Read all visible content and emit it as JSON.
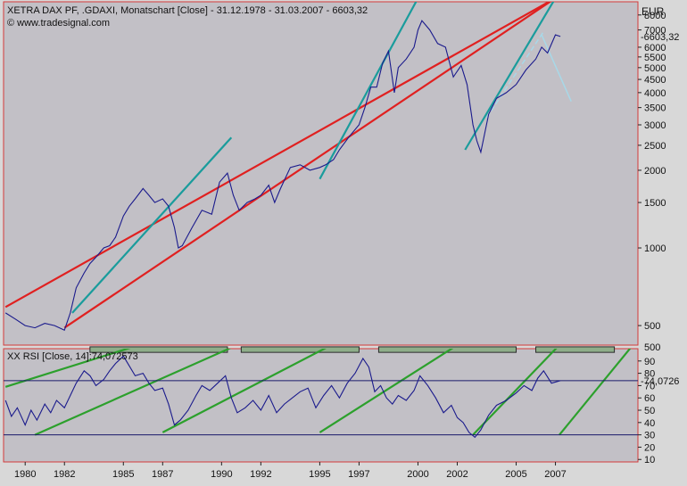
{
  "chart_data": [
    {
      "type": "line",
      "title": "XETRA DAX PF, .GDAXI, Monatschart [Close] - 31.12.1978 - 31.03.2007 - 6603,32",
      "source": "© www.tradesignal.com",
      "unit": "EUR",
      "scale": "log",
      "last_value_label": "6603,32",
      "y_ticks": [
        500,
        1000,
        1500,
        2000,
        2500,
        3000,
        3500,
        4000,
        4500,
        5000,
        5500,
        6000,
        7000,
        8000
      ],
      "y_tick_labels": [
        "500",
        "1000",
        "1500",
        "2000",
        "2500",
        "3000",
        "3500",
        "4000",
        "4500",
        "5000",
        "5500",
        "6000",
        "7000",
        "8000"
      ],
      "ylim_label_partial": "500",
      "ylim": [
        420,
        9000
      ],
      "xlim": [
        1978.9,
        2011.2
      ],
      "grid": false,
      "series": [
        {
          "color": "#1a1a8c",
          "x": [
            1979.0,
            1979.5,
            1980.0,
            1980.5,
            1981.0,
            1981.5,
            1982.0,
            1982.3,
            1982.6,
            1983.0,
            1983.3,
            1983.6,
            1984.0,
            1984.3,
            1984.6,
            1985.0,
            1985.3,
            1985.6,
            1986.0,
            1986.3,
            1986.6,
            1987.0,
            1987.3,
            1987.6,
            1987.8,
            1988.0,
            1988.5,
            1989.0,
            1989.5,
            1989.9,
            1990.3,
            1990.6,
            1990.9,
            1991.3,
            1991.7,
            1992.0,
            1992.4,
            1992.7,
            1993.0,
            1993.5,
            1994.0,
            1994.5,
            1995.0,
            1995.3,
            1995.7,
            1996.0,
            1996.5,
            1997.0,
            1997.3,
            1997.6,
            1997.9,
            1998.2,
            1998.5,
            1998.8,
            1999.0,
            1999.4,
            1999.8,
            2000.0,
            2000.2,
            2000.6,
            2001.0,
            2001.4,
            2001.8,
            2002.2,
            2002.5,
            2002.8,
            2003.0,
            2003.2,
            2003.6,
            2004.0,
            2004.5,
            2005.0,
            2005.5,
            2006.0,
            2006.3,
            2006.6,
            2007.0,
            2007.25
          ],
          "values": [
            560,
            530,
            500,
            490,
            510,
            500,
            480,
            560,
            700,
            800,
            870,
            920,
            1000,
            1020,
            1100,
            1330,
            1450,
            1550,
            1700,
            1600,
            1500,
            1550,
            1450,
            1200,
            1000,
            1020,
            1200,
            1400,
            1350,
            1800,
            1950,
            1600,
            1400,
            1500,
            1550,
            1600,
            1750,
            1500,
            1700,
            2050,
            2100,
            2000,
            2050,
            2100,
            2200,
            2400,
            2700,
            3000,
            3500,
            4200,
            4200,
            5200,
            5800,
            4000,
            5000,
            5400,
            6000,
            7000,
            7600,
            7000,
            6200,
            6000,
            4600,
            5100,
            4300,
            3000,
            2600,
            2350,
            3300,
            3800,
            4000,
            4300,
            4900,
            5400,
            6000,
            5700,
            6700,
            6603
          ]
        }
      ],
      "trendlines": [
        {
          "color": "#e02020",
          "x": [
            1979.0,
            2007.0
          ],
          "values": [
            590,
            9300
          ]
        },
        {
          "color": "#e02020",
          "x": [
            1982.0,
            2007.0
          ],
          "values": [
            490,
            9300
          ]
        },
        {
          "color": "#1a9c9c",
          "x": [
            1982.4,
            1990.5
          ],
          "values": [
            560,
            2680
          ]
        },
        {
          "color": "#1a9c9c",
          "x": [
            1995.0,
            2000.0
          ],
          "values": [
            1850,
            9300
          ]
        },
        {
          "color": "#1a9c9c",
          "x": [
            2002.4,
            2007.0
          ],
          "values": [
            2400,
            9300
          ]
        },
        {
          "color": "#a8d8e8",
          "x": [
            2006.3,
            2007.8
          ],
          "values": [
            6700,
            3700
          ]
        },
        {
          "color": "#a8d8e8",
          "x": [
            2003.5,
            2006.4
          ],
          "values": [
            3200,
            6900
          ]
        }
      ],
      "x_ticks": [
        1980,
        1982,
        1985,
        1987,
        1990,
        1992,
        1995,
        1997,
        2000,
        2002,
        2005,
        2007
      ],
      "x_tick_labels": [
        "1980",
        "1982",
        "1985",
        "1987",
        "1990",
        "1992",
        "1995",
        "1997",
        "2000",
        "2002",
        "2005",
        "2007"
      ]
    },
    {
      "type": "line",
      "title": "XX RSI [Close, 14]:74,072573",
      "last_value_label": "74,0726",
      "y_tick_labels": [
        "90",
        "80",
        "70",
        "60",
        "50",
        "40",
        "30",
        "20",
        "10"
      ],
      "y_ticks": [
        90,
        80,
        70,
        60,
        50,
        40,
        30,
        20,
        10
      ],
      "ylim": [
        8,
        100
      ],
      "ylim_label_partial": "90",
      "reference_lines": [
        74,
        30
      ],
      "xlim": [
        1978.9,
        2011.2
      ],
      "series": [
        {
          "color": "#1a1a8c",
          "x": [
            1979.0,
            1979.3,
            1979.6,
            1980.0,
            1980.3,
            1980.6,
            1981.0,
            1981.3,
            1981.6,
            1982.0,
            1982.3,
            1982.6,
            1983.0,
            1983.3,
            1983.6,
            1984.0,
            1984.3,
            1984.6,
            1985.0,
            1985.3,
            1985.6,
            1986.0,
            1986.3,
            1986.6,
            1987.0,
            1987.3,
            1987.6,
            1987.9,
            1988.3,
            1988.7,
            1989.0,
            1989.4,
            1989.8,
            1990.2,
            1990.5,
            1990.8,
            1991.2,
            1991.6,
            1992.0,
            1992.4,
            1992.8,
            1993.2,
            1993.6,
            1994.0,
            1994.4,
            1994.8,
            1995.2,
            1995.6,
            1996.0,
            1996.4,
            1996.8,
            1997.2,
            1997.5,
            1997.8,
            1998.1,
            1998.4,
            1998.7,
            1999.0,
            1999.4,
            1999.8,
            2000.1,
            2000.5,
            2000.9,
            2001.3,
            2001.7,
            2002.0,
            2002.3,
            2002.6,
            2002.9,
            2003.2,
            2003.6,
            2004.0,
            2004.5,
            2005.0,
            2005.4,
            2005.8,
            2006.1,
            2006.4,
            2006.8,
            2007.25
          ],
          "values": [
            58,
            45,
            52,
            38,
            50,
            42,
            55,
            48,
            58,
            52,
            62,
            72,
            82,
            78,
            70,
            75,
            82,
            88,
            94,
            86,
            78,
            80,
            72,
            66,
            68,
            55,
            38,
            42,
            50,
            62,
            70,
            66,
            72,
            78,
            60,
            48,
            52,
            58,
            50,
            62,
            48,
            55,
            60,
            65,
            68,
            52,
            62,
            70,
            60,
            72,
            80,
            92,
            85,
            65,
            70,
            60,
            55,
            62,
            58,
            66,
            78,
            70,
            60,
            48,
            54,
            44,
            40,
            32,
            28,
            34,
            46,
            54,
            58,
            64,
            70,
            66,
            76,
            82,
            72,
            74
          ]
        }
      ],
      "trendlines": [
        {
          "color": "#2ca02c",
          "x": [
            1979.0,
            1986.8
          ],
          "values": [
            69,
            108
          ]
        },
        {
          "color": "#2ca02c",
          "x": [
            1980.5,
            1991.5
          ],
          "values": [
            30,
            108
          ]
        },
        {
          "color": "#2ca02c",
          "x": [
            1987.0,
            1996.2
          ],
          "values": [
            32,
            108
          ]
        },
        {
          "color": "#2ca02c",
          "x": [
            1995.0,
            2002.5
          ],
          "values": [
            32,
            108
          ]
        },
        {
          "color": "#2ca02c",
          "x": [
            2002.8,
            2007.5
          ],
          "values": [
            30,
            108
          ]
        },
        {
          "color": "#2ca02c",
          "x": [
            2007.2,
            2011.2
          ],
          "values": [
            30,
            108
          ]
        }
      ],
      "resistance_boxes": [
        {
          "x": [
            1983.3,
            1990.3
          ],
          "values": [
            97,
            101.5
          ]
        },
        {
          "x": [
            1991.0,
            1997.0
          ],
          "values": [
            97,
            101.5
          ]
        },
        {
          "x": [
            1998.0,
            2005.0
          ],
          "values": [
            97,
            101.5
          ]
        },
        {
          "x": [
            2006.0,
            2010.0
          ],
          "values": [
            97,
            101.5
          ]
        }
      ]
    }
  ]
}
